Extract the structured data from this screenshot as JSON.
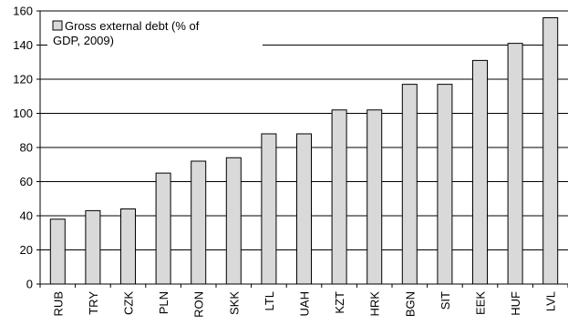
{
  "chart_data": {
    "type": "bar",
    "title": "",
    "xlabel": "",
    "ylabel": "",
    "categories": [
      "RUB",
      "TRY",
      "CZK",
      "PLN",
      "RON",
      "SKK",
      "LTL",
      "UAH",
      "KZT",
      "HRK",
      "BGN",
      "SIT",
      "EEK",
      "HUF",
      "LVL"
    ],
    "series": [
      {
        "name": "Gross external debt (% of GDP, 2009)",
        "legend_lines": [
          "Gross external debt (% of",
          "GDP, 2009)"
        ],
        "values": [
          38,
          43,
          44,
          65,
          72,
          74,
          88,
          88,
          102,
          102,
          117,
          117,
          131,
          141,
          156
        ]
      }
    ],
    "ylim": [
      0,
      160
    ],
    "yticks": [
      0,
      20,
      40,
      60,
      80,
      100,
      120,
      140,
      160
    ],
    "grid": true,
    "legend_position": "top-left",
    "colors": {
      "bar_fill": "#d9d9d9",
      "bar_stroke": "#000000",
      "grid": "#000000"
    }
  }
}
